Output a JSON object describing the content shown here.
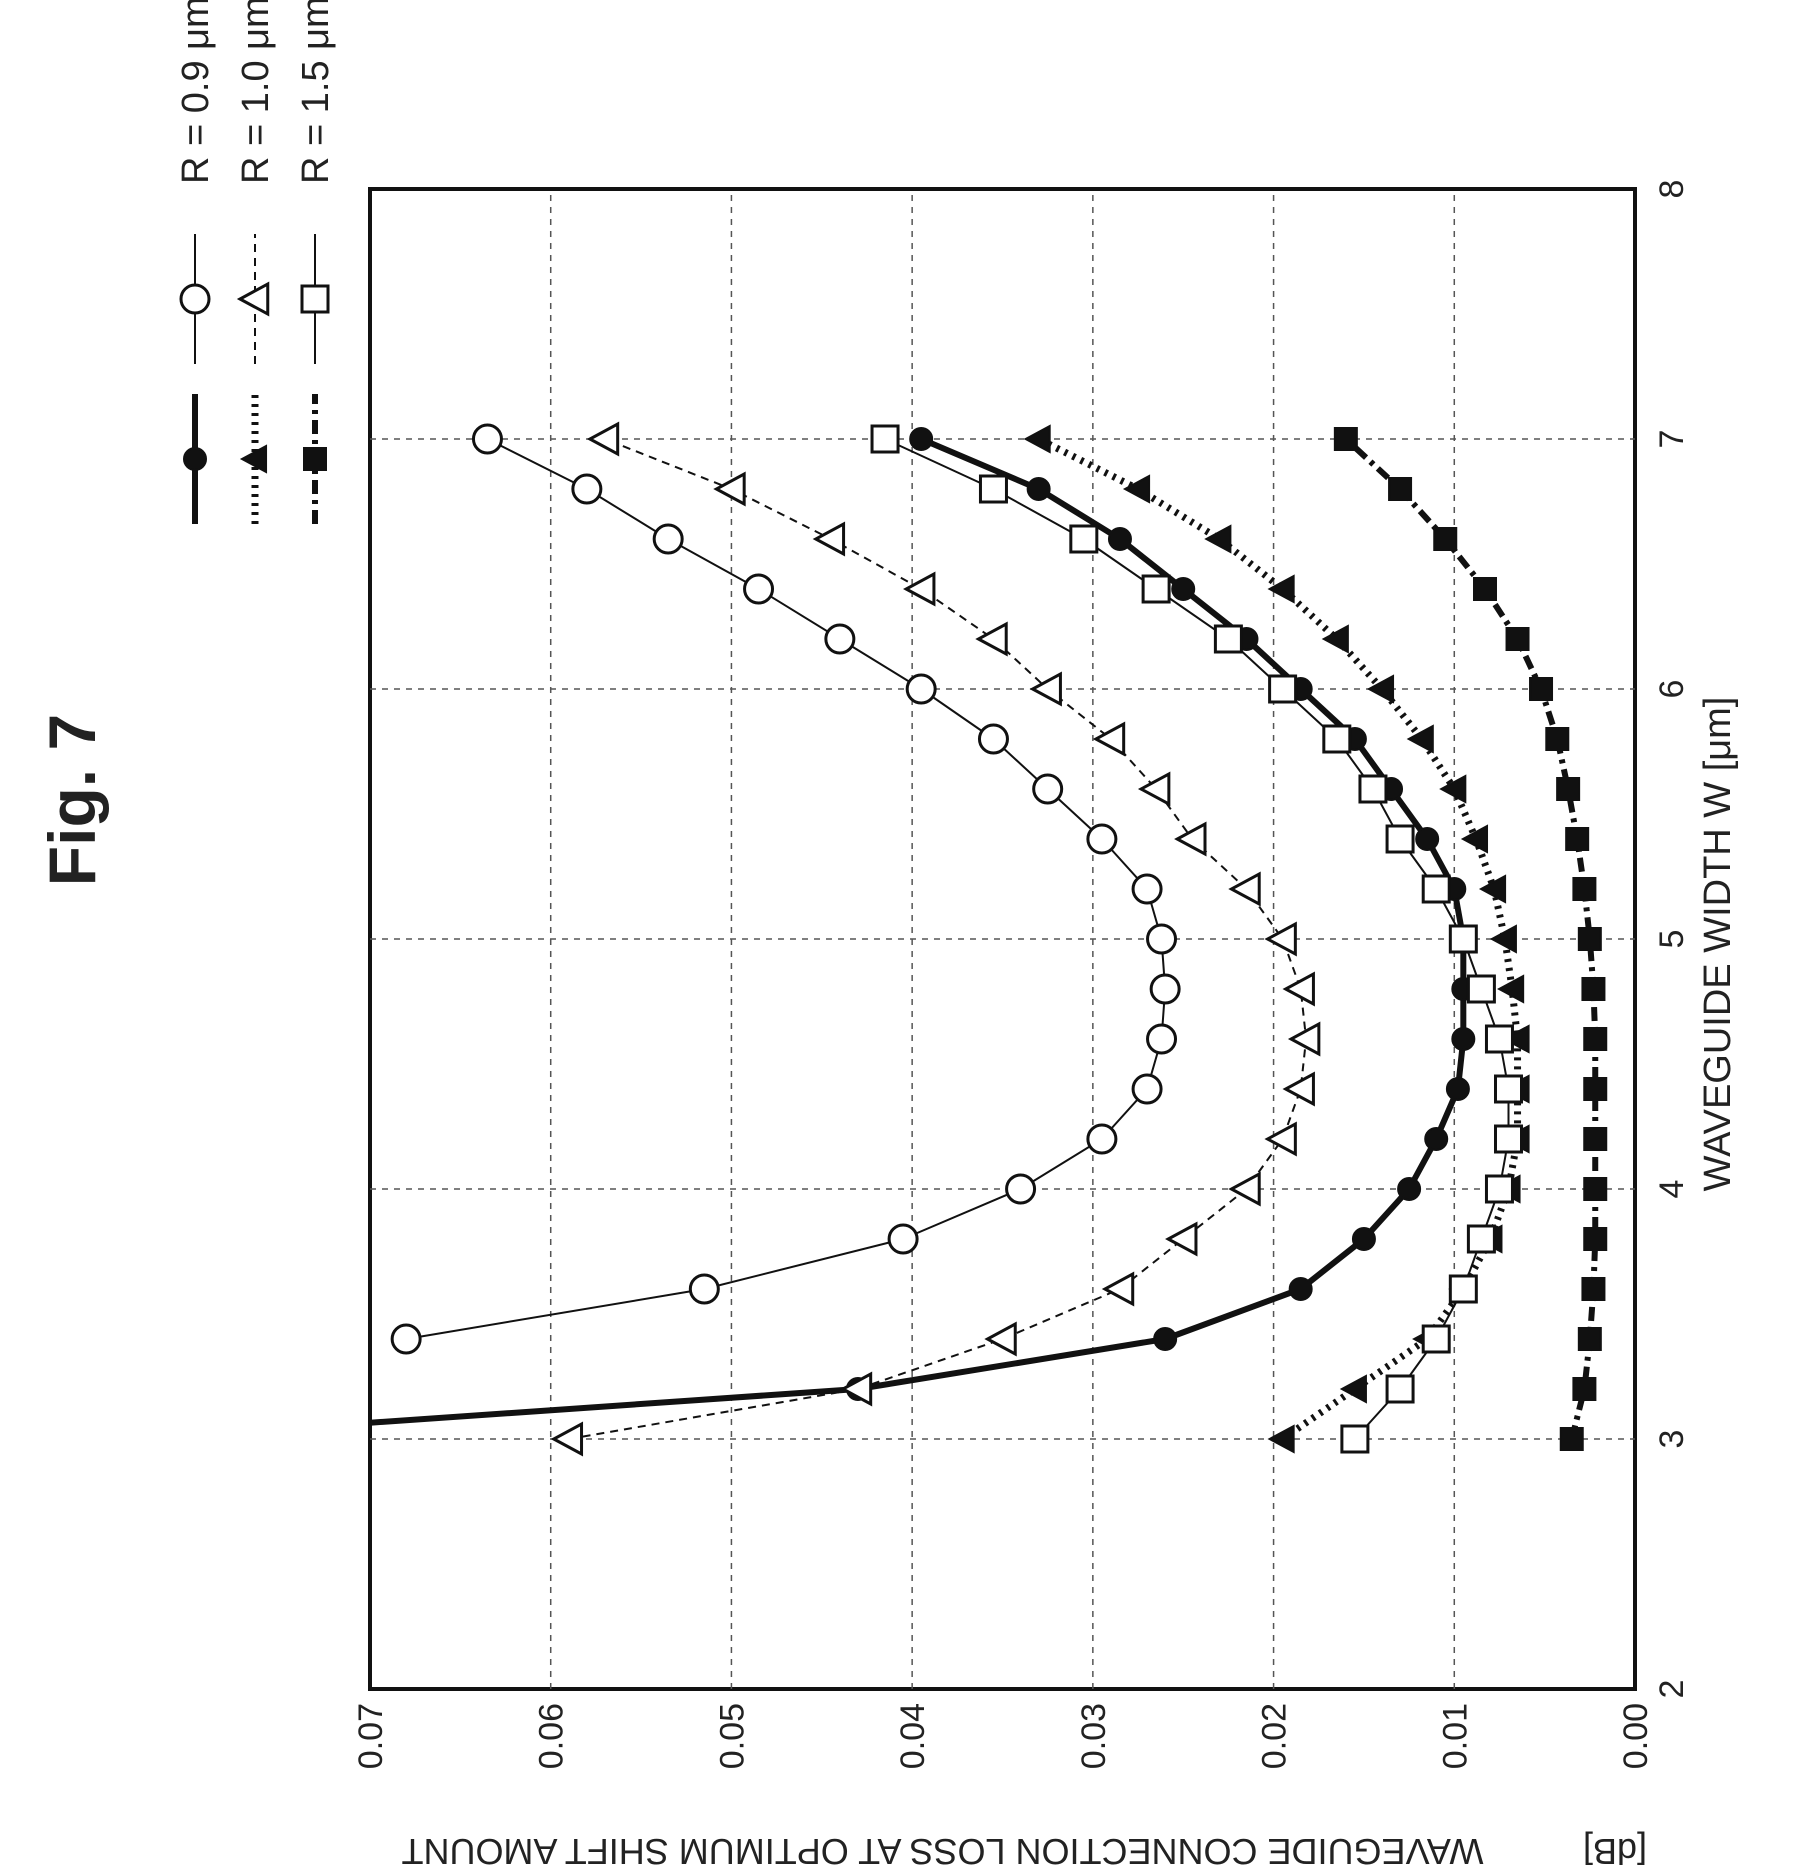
{
  "figure_label": "Fig. 7",
  "chart_data": {
    "type": "line",
    "xlabel": "WAVEGUIDE WIDTH W [μm]",
    "ylabel": "WAVEGUIDE CONNECTION LOSS AT OPTIMUM SHIFT AMOUNT",
    "ylabel_unit": "[dB]",
    "xlim": [
      2,
      8
    ],
    "ylim": [
      0.0,
      0.07
    ],
    "x_ticks": [
      "2",
      "3",
      "4",
      "5",
      "6",
      "7",
      "8"
    ],
    "y_ticks": [
      "0.00",
      "0.01",
      "0.02",
      "0.03",
      "0.04",
      "0.05",
      "0.06",
      "0.07"
    ],
    "grid": true,
    "legend_position": "upper-right",
    "x": [
      3.0,
      3.2,
      3.4,
      3.6,
      3.8,
      4.0,
      4.2,
      4.4,
      4.6,
      4.8,
      5.0,
      5.2,
      5.4,
      5.6,
      5.8,
      6.0,
      6.2,
      6.4,
      6.6,
      6.8,
      7.0
    ],
    "series": [
      {
        "name": "R = 0.9 μm",
        "marker": "filled-circle",
        "line": "solid-thick",
        "values": [
          0.083,
          0.043,
          0.026,
          0.0185,
          0.015,
          0.0125,
          0.011,
          0.0098,
          0.0095,
          0.0095,
          0.0095,
          0.01,
          0.0115,
          0.0135,
          0.0155,
          0.0185,
          0.0215,
          0.025,
          0.0285,
          0.033,
          0.0395
        ]
      },
      {
        "name": "R = 1.0 μm",
        "marker": "filled-triangle",
        "line": "dotted-thick",
        "values": [
          0.0195,
          0.0155,
          0.0115,
          0.0095,
          0.008,
          0.007,
          0.0065,
          0.0065,
          0.0065,
          0.0068,
          0.0072,
          0.0078,
          0.0088,
          0.01,
          0.0118,
          0.014,
          0.0165,
          0.0195,
          0.023,
          0.0275,
          0.033
        ]
      },
      {
        "name": "R = 1.5 μm",
        "marker": "filled-square",
        "line": "dash-dot-thick",
        "values": [
          0.0035,
          0.0028,
          0.0025,
          0.0023,
          0.0022,
          0.0022,
          0.0022,
          0.0022,
          0.0022,
          0.0023,
          0.0025,
          0.0028,
          0.0032,
          0.0037,
          0.0043,
          0.0052,
          0.0065,
          0.0083,
          0.0105,
          0.013,
          0.016
        ]
      },
      {
        "name": "",
        "marker": "open-circle",
        "line": "solid-thin",
        "values": [
          null,
          null,
          0.068,
          0.0515,
          0.0405,
          0.034,
          0.0295,
          0.027,
          0.0262,
          0.026,
          0.0262,
          0.027,
          0.0295,
          0.0325,
          0.0355,
          0.0395,
          0.044,
          0.0485,
          0.0535,
          0.058,
          0.0635
        ]
      },
      {
        "name": "",
        "marker": "open-triangle",
        "line": "dashed-thin",
        "values": [
          0.059,
          0.043,
          0.035,
          0.0285,
          0.025,
          0.0215,
          0.0195,
          0.0185,
          0.0182,
          0.0185,
          0.0195,
          0.0215,
          0.0245,
          0.0265,
          0.029,
          0.0325,
          0.0355,
          0.0395,
          0.0445,
          0.05,
          0.057
        ]
      },
      {
        "name": "",
        "marker": "open-square",
        "line": "solid-thin",
        "values": [
          0.0155,
          0.013,
          0.011,
          0.0095,
          0.0085,
          0.0075,
          0.007,
          0.007,
          0.0075,
          0.0085,
          0.0095,
          0.011,
          0.013,
          0.0145,
          0.0165,
          0.0195,
          0.0225,
          0.0265,
          0.0305,
          0.0355,
          0.0415
        ]
      }
    ]
  },
  "colors": {
    "ink": "#111111",
    "grid": "#555555",
    "background": "#ffffff"
  }
}
